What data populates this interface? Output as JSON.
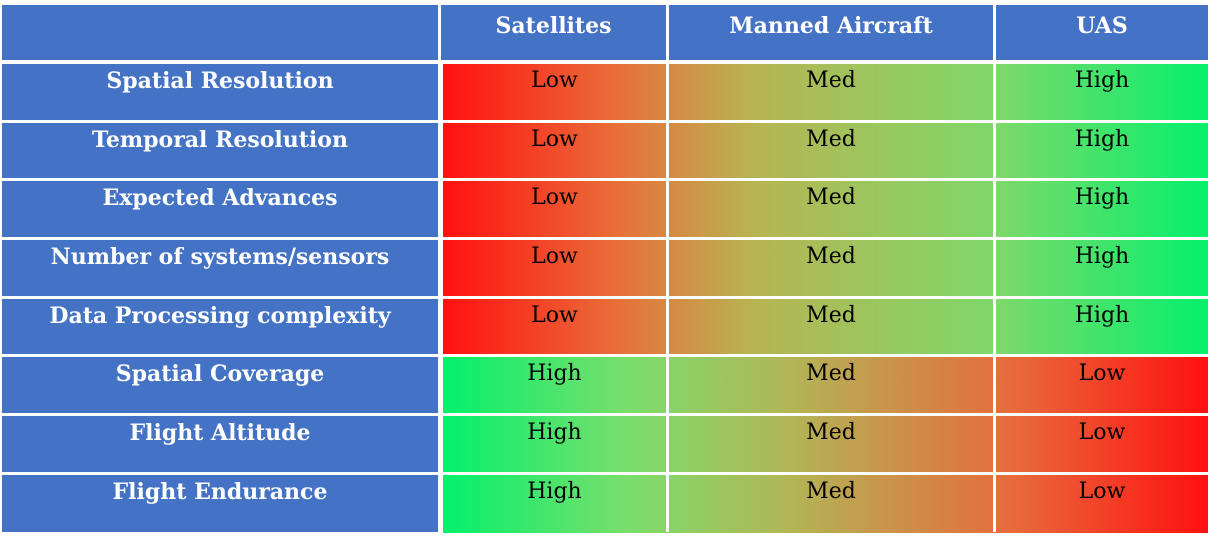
{
  "columns": [
    "",
    "Satellites",
    "Manned Aircraft",
    "UAS"
  ],
  "rows": [
    {
      "label": "Spatial Resolution",
      "values": [
        "Low",
        "Med",
        "High"
      ]
    },
    {
      "label": "Temporal Resolution",
      "values": [
        "Low",
        "Med",
        "High"
      ]
    },
    {
      "label": "Expected Advances",
      "values": [
        "Low",
        "Med",
        "High"
      ]
    },
    {
      "label": "Number of systems/sensors",
      "values": [
        "Low",
        "Med",
        "High"
      ]
    },
    {
      "label": "Data Processing complexity",
      "values": [
        "Low",
        "Med",
        "High"
      ]
    },
    {
      "label": "Spatial Coverage",
      "values": [
        "High",
        "Med",
        "Low"
      ]
    },
    {
      "label": "Flight Altitude",
      "values": [
        "High",
        "Med",
        "Low"
      ]
    },
    {
      "label": "Flight Endurance",
      "values": [
        "High",
        "Med",
        "Low"
      ]
    }
  ],
  "colors": {
    "header": "#4472c4",
    "low": "#ff1010",
    "high": "#05f06c"
  }
}
